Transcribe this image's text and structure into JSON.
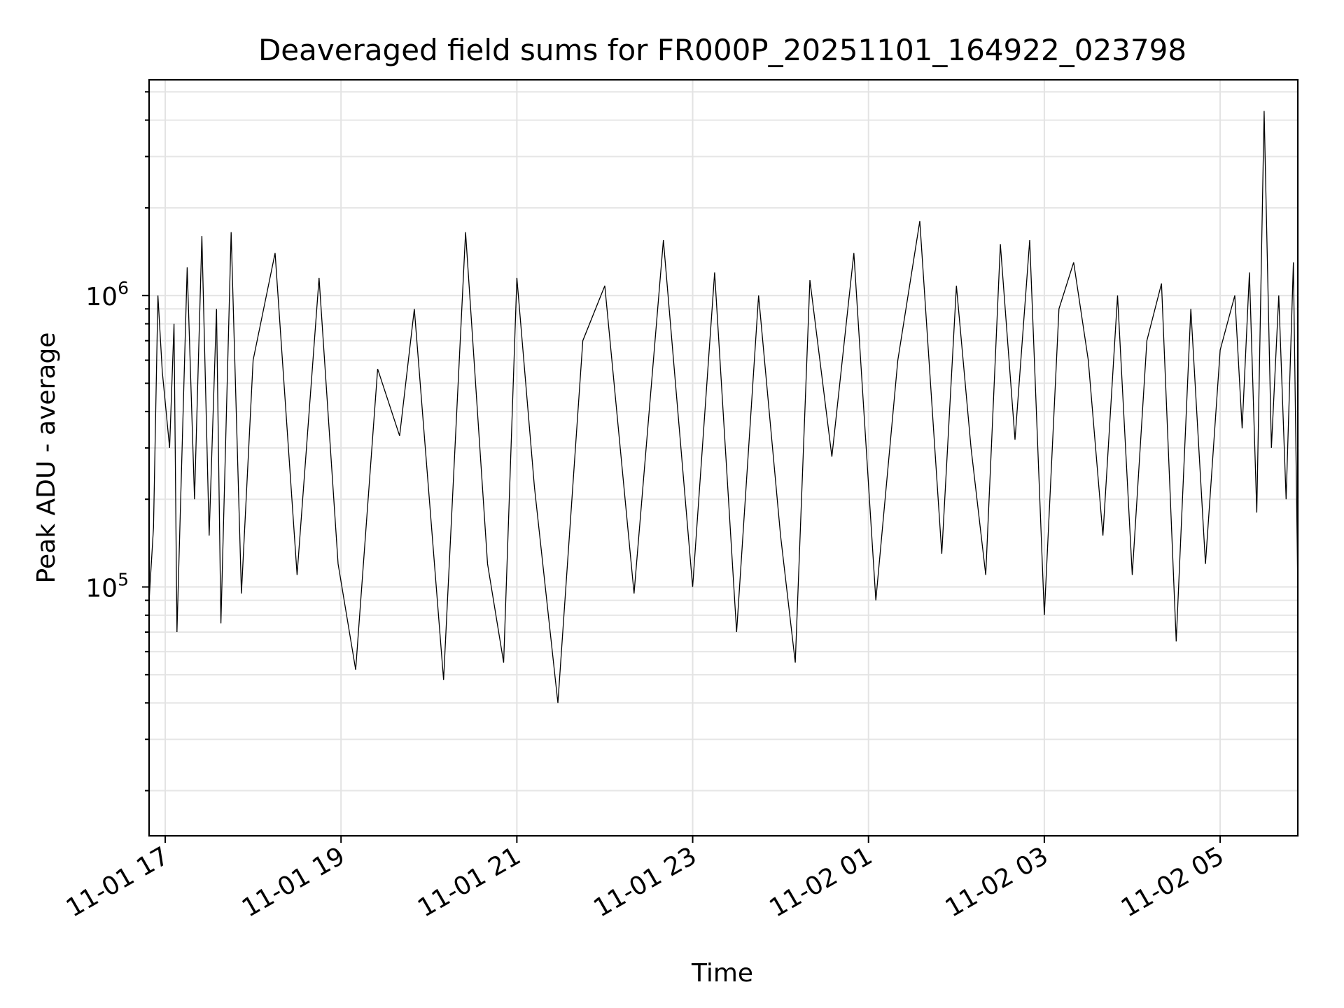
{
  "chart_data": {
    "type": "line",
    "title": "Deaveraged field sums for FR000P_20251101_164922_023798",
    "xlabel": "Time",
    "ylabel": "Peak ADU - average",
    "x_axis": {
      "kind": "datetime",
      "range": [
        "2025-11-01 16:49",
        "2025-11-02 05:53"
      ],
      "tick_values": [
        "2025-11-01 17:00",
        "2025-11-01 19:00",
        "2025-11-01 21:00",
        "2025-11-01 23:00",
        "2025-11-02 01:00",
        "2025-11-02 03:00",
        "2025-11-02 05:00"
      ],
      "tick_labels": [
        "11-01 17",
        "11-01 19",
        "11-01 21",
        "11-01 23",
        "11-02 01",
        "11-02 03",
        "11-02 05"
      ]
    },
    "y_axis": {
      "scale": "log",
      "range": [
        14000,
        5500000
      ],
      "major_ticks": [
        100000,
        1000000
      ],
      "major_tick_labels": [
        {
          "base": "10",
          "exp": "5"
        },
        {
          "base": "10",
          "exp": "6"
        }
      ]
    },
    "grid": true,
    "line_color": "#000000",
    "series": [
      {
        "points": [
          [
            "2025-11-01 16:49",
            90000
          ],
          [
            "2025-11-01 16:52",
            160000
          ],
          [
            "2025-11-01 16:55",
            1000000
          ],
          [
            "2025-11-01 16:58",
            550000
          ],
          [
            "2025-11-01 17:03",
            300000
          ],
          [
            "2025-11-01 17:06",
            800000
          ],
          [
            "2025-11-01 17:08",
            70000
          ],
          [
            "2025-11-01 17:15",
            1250000
          ],
          [
            "2025-11-01 17:20",
            200000
          ],
          [
            "2025-11-01 17:25",
            1600000
          ],
          [
            "2025-11-01 17:30",
            150000
          ],
          [
            "2025-11-01 17:35",
            900000
          ],
          [
            "2025-11-01 17:38",
            75000
          ],
          [
            "2025-11-01 17:45",
            1650000
          ],
          [
            "2025-11-01 17:52",
            95000
          ],
          [
            "2025-11-01 18:00",
            600000
          ],
          [
            "2025-11-01 18:15",
            1400000
          ],
          [
            "2025-11-01 18:30",
            110000
          ],
          [
            "2025-11-01 18:45",
            1150000
          ],
          [
            "2025-11-01 18:58",
            120000
          ],
          [
            "2025-11-01 19:10",
            52000
          ],
          [
            "2025-11-01 19:25",
            560000
          ],
          [
            "2025-11-01 19:40",
            330000
          ],
          [
            "2025-11-01 19:50",
            900000
          ],
          [
            "2025-11-01 20:10",
            48000
          ],
          [
            "2025-11-01 20:25",
            1650000
          ],
          [
            "2025-11-01 20:40",
            120000
          ],
          [
            "2025-11-01 20:51",
            55000
          ],
          [
            "2025-11-01 21:00",
            1150000
          ],
          [
            "2025-11-01 21:12",
            220000
          ],
          [
            "2025-11-01 21:28",
            40000
          ],
          [
            "2025-11-01 21:45",
            700000
          ],
          [
            "2025-11-01 22:00",
            1080000
          ],
          [
            "2025-11-01 22:20",
            95000
          ],
          [
            "2025-11-01 22:40",
            1550000
          ],
          [
            "2025-11-01 23:00",
            100000
          ],
          [
            "2025-11-01 23:15",
            1200000
          ],
          [
            "2025-11-01 23:30",
            70000
          ],
          [
            "2025-11-01 23:45",
            1000000
          ],
          [
            "2025-11-02 00:00",
            150000
          ],
          [
            "2025-11-02 00:10",
            55000
          ],
          [
            "2025-11-02 00:20",
            1130000
          ],
          [
            "2025-11-02 00:35",
            280000
          ],
          [
            "2025-11-02 00:50",
            1400000
          ],
          [
            "2025-11-02 01:05",
            90000
          ],
          [
            "2025-11-02 01:20",
            600000
          ],
          [
            "2025-11-02 01:35",
            1800000
          ],
          [
            "2025-11-02 01:50",
            130000
          ],
          [
            "2025-11-02 02:00",
            1080000
          ],
          [
            "2025-11-02 02:10",
            300000
          ],
          [
            "2025-11-02 02:20",
            110000
          ],
          [
            "2025-11-02 02:30",
            1500000
          ],
          [
            "2025-11-02 02:40",
            320000
          ],
          [
            "2025-11-02 02:50",
            1550000
          ],
          [
            "2025-11-02 03:00",
            80000
          ],
          [
            "2025-11-02 03:10",
            900000
          ],
          [
            "2025-11-02 03:20",
            1300000
          ],
          [
            "2025-11-02 03:30",
            600000
          ],
          [
            "2025-11-02 03:40",
            150000
          ],
          [
            "2025-11-02 03:50",
            1000000
          ],
          [
            "2025-11-02 04:00",
            110000
          ],
          [
            "2025-11-02 04:10",
            700000
          ],
          [
            "2025-11-02 04:20",
            1100000
          ],
          [
            "2025-11-02 04:30",
            65000
          ],
          [
            "2025-11-02 04:40",
            900000
          ],
          [
            "2025-11-02 04:50",
            120000
          ],
          [
            "2025-11-02 05:00",
            650000
          ],
          [
            "2025-11-02 05:10",
            1000000
          ],
          [
            "2025-11-02 05:15",
            350000
          ],
          [
            "2025-11-02 05:20",
            1200000
          ],
          [
            "2025-11-02 05:25",
            180000
          ],
          [
            "2025-11-02 05:30",
            4300000
          ],
          [
            "2025-11-02 05:35",
            300000
          ],
          [
            "2025-11-02 05:40",
            1000000
          ],
          [
            "2025-11-02 05:45",
            200000
          ],
          [
            "2025-11-02 05:50",
            1300000
          ],
          [
            "2025-11-02 05:53",
            100000
          ]
        ]
      }
    ]
  }
}
